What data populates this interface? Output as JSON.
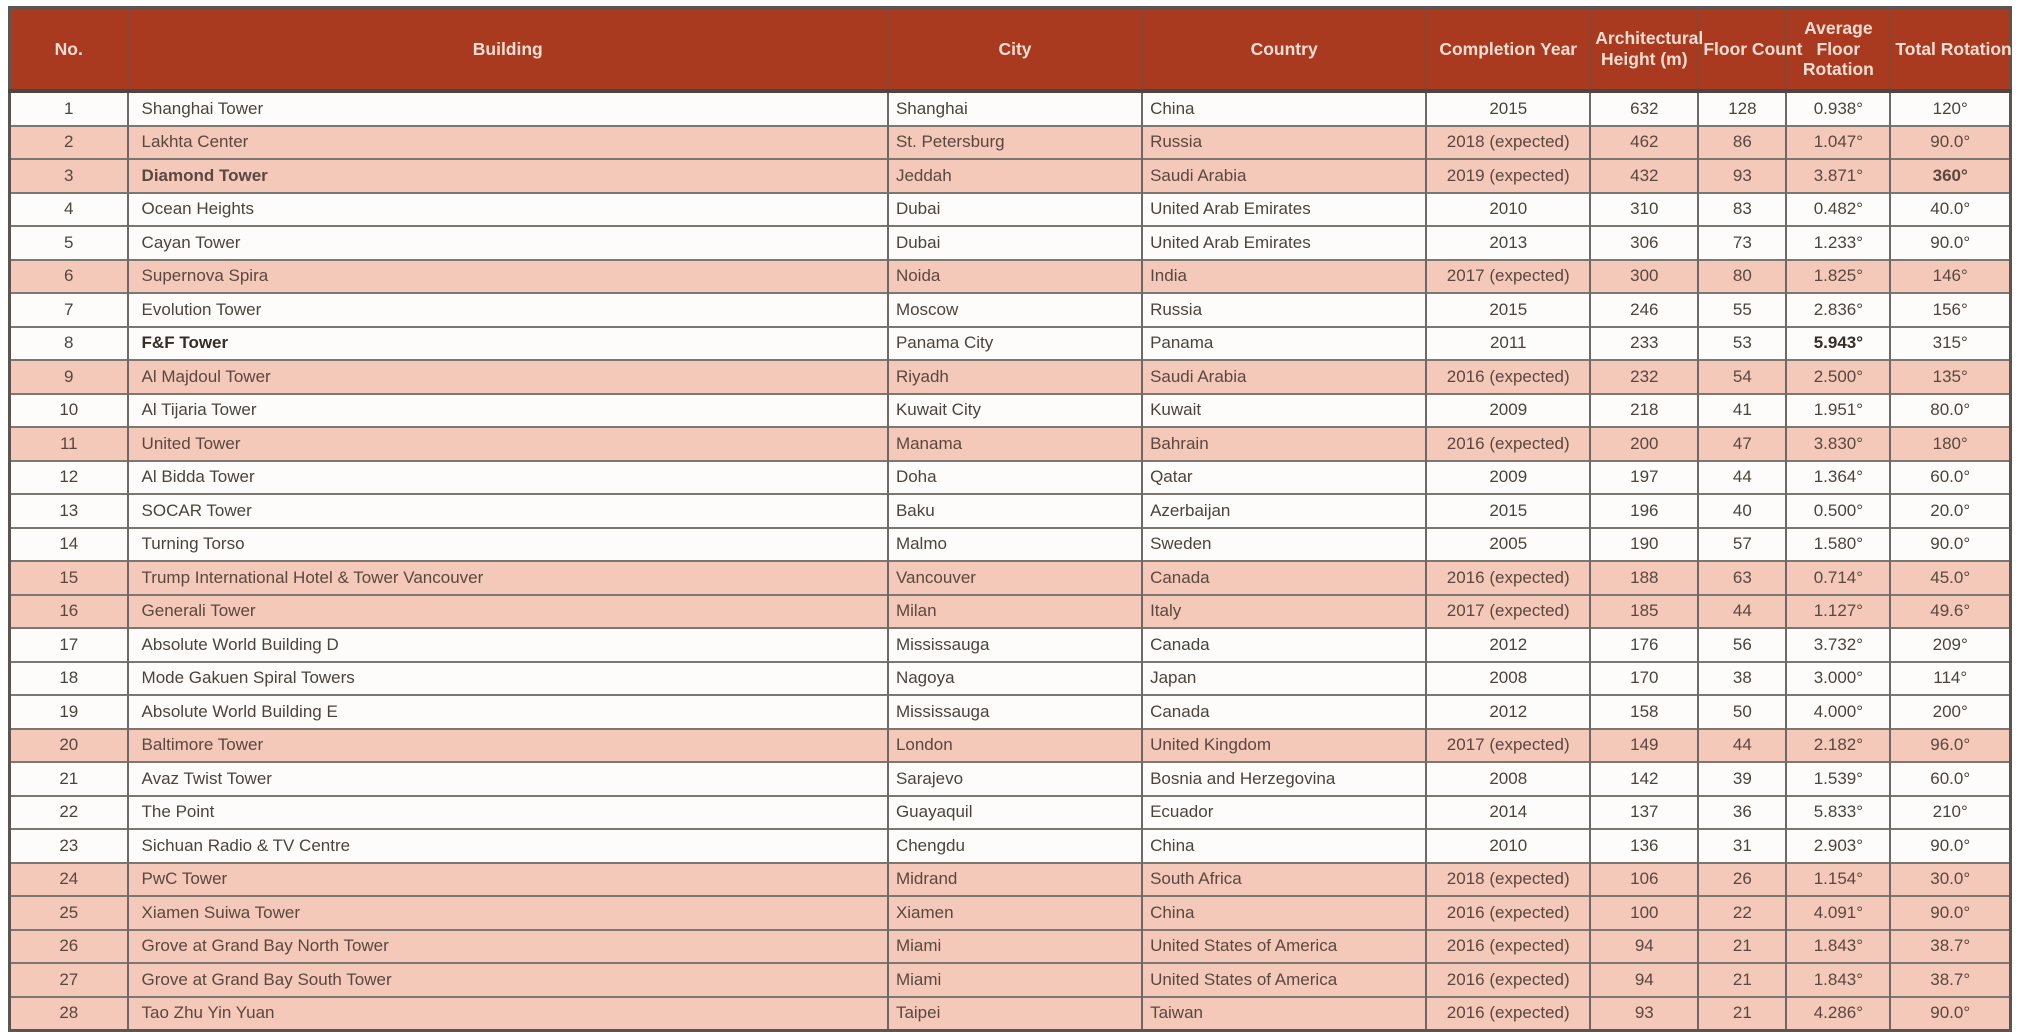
{
  "table": {
    "columns": [
      {
        "key": "no",
        "label": "No.",
        "wrap": false
      },
      {
        "key": "building",
        "label": "Building",
        "wrap": false
      },
      {
        "key": "city",
        "label": "City",
        "wrap": false
      },
      {
        "key": "country",
        "label": "Country",
        "wrap": false
      },
      {
        "key": "year",
        "label": "Completion Year",
        "wrap": false
      },
      {
        "key": "height",
        "label": "Architectural Height (m)",
        "wrap": true
      },
      {
        "key": "floors",
        "label": "Floor Count",
        "wrap": false
      },
      {
        "key": "avg",
        "label": "Average Floor Rotation",
        "wrap": true
      },
      {
        "key": "total",
        "label": "Total Rotation",
        "wrap": false
      }
    ],
    "rows": [
      {
        "no": "1",
        "building": "Shanghai Tower",
        "city": "Shanghai",
        "country": "China",
        "year": "2015",
        "height": "632",
        "floors": "128",
        "avg": "0.938°",
        "total": "120°",
        "pink": false,
        "bold": []
      },
      {
        "no": "2",
        "building": "Lakhta Center",
        "city": "St. Petersburg",
        "country": "Russia",
        "year": "2018 (expected)",
        "height": "462",
        "floors": "86",
        "avg": "1.047°",
        "total": "90.0°",
        "pink": true,
        "bold": []
      },
      {
        "no": "3",
        "building": "Diamond Tower",
        "city": "Jeddah",
        "country": "Saudi Arabia",
        "year": "2019 (expected)",
        "height": "432",
        "floors": "93",
        "avg": "3.871°",
        "total": "360°",
        "pink": true,
        "bold": [
          "building",
          "total"
        ]
      },
      {
        "no": "4",
        "building": "Ocean Heights",
        "city": "Dubai",
        "country": "United Arab Emirates",
        "year": "2010",
        "height": "310",
        "floors": "83",
        "avg": "0.482°",
        "total": "40.0°",
        "pink": false,
        "bold": []
      },
      {
        "no": "5",
        "building": "Cayan Tower",
        "city": "Dubai",
        "country": "United Arab Emirates",
        "year": "2013",
        "height": "306",
        "floors": "73",
        "avg": "1.233°",
        "total": "90.0°",
        "pink": false,
        "bold": []
      },
      {
        "no": "6",
        "building": "Supernova Spira",
        "city": "Noida",
        "country": "India",
        "year": "2017 (expected)",
        "height": "300",
        "floors": "80",
        "avg": "1.825°",
        "total": "146°",
        "pink": true,
        "bold": []
      },
      {
        "no": "7",
        "building": "Evolution Tower",
        "city": "Moscow",
        "country": "Russia",
        "year": "2015",
        "height": "246",
        "floors": "55",
        "avg": "2.836°",
        "total": "156°",
        "pink": false,
        "bold": []
      },
      {
        "no": "8",
        "building": "F&F Tower",
        "city": "Panama City",
        "country": "Panama",
        "year": "2011",
        "height": "233",
        "floors": "53",
        "avg": "5.943°",
        "total": "315°",
        "pink": false,
        "bold": [
          "building",
          "avg"
        ]
      },
      {
        "no": "9",
        "building": "Al Majdoul Tower",
        "city": "Riyadh",
        "country": "Saudi Arabia",
        "year": "2016 (expected)",
        "height": "232",
        "floors": "54",
        "avg": "2.500°",
        "total": "135°",
        "pink": true,
        "bold": []
      },
      {
        "no": "10",
        "building": "Al Tijaria Tower",
        "city": "Kuwait City",
        "country": "Kuwait",
        "year": "2009",
        "height": "218",
        "floors": "41",
        "avg": "1.951°",
        "total": "80.0°",
        "pink": false,
        "bold": []
      },
      {
        "no": "11",
        "building": "United Tower",
        "city": "Manama",
        "country": "Bahrain",
        "year": "2016 (expected)",
        "height": "200",
        "floors": "47",
        "avg": "3.830°",
        "total": "180°",
        "pink": true,
        "bold": []
      },
      {
        "no": "12",
        "building": "Al Bidda Tower",
        "city": "Doha",
        "country": "Qatar",
        "year": "2009",
        "height": "197",
        "floors": "44",
        "avg": "1.364°",
        "total": "60.0°",
        "pink": false,
        "bold": []
      },
      {
        "no": "13",
        "building": "SOCAR Tower",
        "city": "Baku",
        "country": "Azerbaijan",
        "year": "2015",
        "height": "196",
        "floors": "40",
        "avg": "0.500°",
        "total": "20.0°",
        "pink": false,
        "bold": []
      },
      {
        "no": "14",
        "building": "Turning Torso",
        "city": "Malmo",
        "country": "Sweden",
        "year": "2005",
        "height": "190",
        "floors": "57",
        "avg": "1.580°",
        "total": "90.0°",
        "pink": false,
        "bold": []
      },
      {
        "no": "15",
        "building": "Trump International Hotel & Tower Vancouver",
        "city": "Vancouver",
        "country": "Canada",
        "year": "2016 (expected)",
        "height": "188",
        "floors": "63",
        "avg": "0.714°",
        "total": "45.0°",
        "pink": true,
        "bold": []
      },
      {
        "no": "16",
        "building": "Generali Tower",
        "city": "Milan",
        "country": "Italy",
        "year": "2017 (expected)",
        "height": "185",
        "floors": "44",
        "avg": "1.127°",
        "total": "49.6°",
        "pink": true,
        "bold": []
      },
      {
        "no": "17",
        "building": "Absolute World Building D",
        "city": "Mississauga",
        "country": "Canada",
        "year": "2012",
        "height": "176",
        "floors": "56",
        "avg": "3.732°",
        "total": "209°",
        "pink": false,
        "bold": []
      },
      {
        "no": "18",
        "building": "Mode Gakuen Spiral Towers",
        "city": "Nagoya",
        "country": "Japan",
        "year": "2008",
        "height": "170",
        "floors": "38",
        "avg": "3.000°",
        "total": "114°",
        "pink": false,
        "bold": []
      },
      {
        "no": "19",
        "building": "Absolute World Building E",
        "city": "Mississauga",
        "country": "Canada",
        "year": "2012",
        "height": "158",
        "floors": "50",
        "avg": "4.000°",
        "total": "200°",
        "pink": false,
        "bold": []
      },
      {
        "no": "20",
        "building": "Baltimore Tower",
        "city": "London",
        "country": "United Kingdom",
        "year": "2017 (expected)",
        "height": "149",
        "floors": "44",
        "avg": "2.182°",
        "total": "96.0°",
        "pink": true,
        "bold": []
      },
      {
        "no": "21",
        "building": "Avaz Twist Tower",
        "city": "Sarajevo",
        "country": "Bosnia and Herzegovina",
        "year": "2008",
        "height": "142",
        "floors": "39",
        "avg": "1.539°",
        "total": "60.0°",
        "pink": false,
        "bold": []
      },
      {
        "no": "22",
        "building": "The Point",
        "city": "Guayaquil",
        "country": "Ecuador",
        "year": "2014",
        "height": "137",
        "floors": "36",
        "avg": "5.833°",
        "total": "210°",
        "pink": false,
        "bold": []
      },
      {
        "no": "23",
        "building": "Sichuan Radio & TV Centre",
        "city": "Chengdu",
        "country": "China",
        "year": "2010",
        "height": "136",
        "floors": "31",
        "avg": "2.903°",
        "total": "90.0°",
        "pink": false,
        "bold": []
      },
      {
        "no": "24",
        "building": "PwC Tower",
        "city": "Midrand",
        "country": "South Africa",
        "year": "2018 (expected)",
        "height": "106",
        "floors": "26",
        "avg": "1.154°",
        "total": "30.0°",
        "pink": true,
        "bold": []
      },
      {
        "no": "25",
        "building": "Xiamen Suiwa Tower",
        "city": "Xiamen",
        "country": "China",
        "year": "2016 (expected)",
        "height": "100",
        "floors": "22",
        "avg": "4.091°",
        "total": "90.0°",
        "pink": true,
        "bold": []
      },
      {
        "no": "26",
        "building": "Grove at Grand Bay North Tower",
        "city": "Miami",
        "country": "United States of America",
        "year": "2016 (expected)",
        "height": "94",
        "floors": "21",
        "avg": "1.843°",
        "total": "38.7°",
        "pink": true,
        "bold": []
      },
      {
        "no": "27",
        "building": "Grove at Grand Bay South Tower",
        "city": "Miami",
        "country": "United States of America",
        "year": "2016 (expected)",
        "height": "94",
        "floors": "21",
        "avg": "1.843°",
        "total": "38.7°",
        "pink": true,
        "bold": []
      },
      {
        "no": "28",
        "building": "Tao Zhu Yin Yuan",
        "city": "Taipei",
        "country": "Taiwan",
        "year": "2016 (expected)",
        "height": "93",
        "floors": "21",
        "avg": "4.286°",
        "total": "90.0°",
        "pink": true,
        "bold": []
      }
    ]
  },
  "colors": {
    "header_bg": "#a93a1f",
    "header_text": "#f8ded3",
    "highlight_row_bg": "#f5c9ba",
    "normal_row_bg": "#fdfcfa",
    "body_text": "#4c433d",
    "grid_border": "#6e6966"
  },
  "column_widths_percent": {
    "no": 5.9,
    "building": 38.0,
    "city": 12.7,
    "country": 14.2,
    "year": 8.2,
    "height": 5.4,
    "floors": 4.4,
    "avg": 5.2,
    "total": 6.0
  }
}
